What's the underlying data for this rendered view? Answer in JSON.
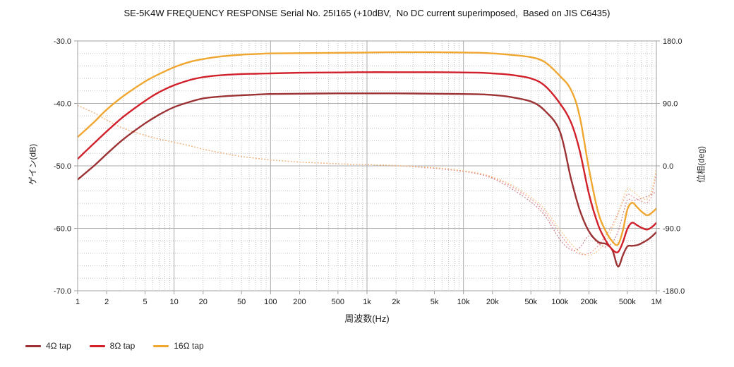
{
  "title": "SE-5K4W FREQUENCY RESPONSE Serial No. 25I165 (+10dBV,  No DC current superimposed,  Based on JIS C6435)",
  "colors": {
    "tap4": "#9c3234",
    "tap8": "#d1202a",
    "tap16": "#f0a732",
    "phase4": "#c4767c",
    "phase8": "#ef8f8f",
    "phase16": "#f5c478",
    "grid_major": "#ababab",
    "grid_minor": "#c2c2c2",
    "frame": "#a0a0a0",
    "text": "#1a1a1a"
  },
  "legend": {
    "items": [
      {
        "label": "4Ω tap",
        "color": "#9c3234"
      },
      {
        "label": "8Ω tap",
        "color": "#d1202a"
      },
      {
        "label": "16Ω tap",
        "color": "#f0a732"
      }
    ]
  },
  "chart_data": {
    "type": "line",
    "title": "SE-5K4W FREQUENCY RESPONSE Serial No. 25I165 (+10dBV,  No DC current superimposed,  Based on JIS C6435)",
    "xlabel": "周波数(Hz)",
    "ylabel_left": "ゲイン(dB)",
    "ylabel_right": "位相(deg)",
    "xscale": "log",
    "xlim": [
      1,
      1000000
    ],
    "ylim_left": [
      -70.0,
      -30.0
    ],
    "ylim_right": [
      -180.0,
      180.0
    ],
    "grid": {
      "major": true,
      "minor_db_step": 2,
      "minor_log_divisions": true
    },
    "legend_position": "bottom-left",
    "x_ticks": [
      {
        "f": 1,
        "label": "1"
      },
      {
        "f": 2,
        "label": "2"
      },
      {
        "f": 5,
        "label": "5"
      },
      {
        "f": 10,
        "label": "10"
      },
      {
        "f": 20,
        "label": "20"
      },
      {
        "f": 50,
        "label": "50"
      },
      {
        "f": 100,
        "label": "100"
      },
      {
        "f": 200,
        "label": "200"
      },
      {
        "f": 500,
        "label": "500"
      },
      {
        "f": 1000,
        "label": "1k"
      },
      {
        "f": 2000,
        "label": "2k"
      },
      {
        "f": 5000,
        "label": "5k"
      },
      {
        "f": 10000,
        "label": "10k"
      },
      {
        "f": 20000,
        "label": "20k"
      },
      {
        "f": 50000,
        "label": "50k"
      },
      {
        "f": 100000,
        "label": "100k"
      },
      {
        "f": 200000,
        "label": "200k"
      },
      {
        "f": 500000,
        "label": "500k"
      },
      {
        "f": 1000000,
        "label": "1M"
      }
    ],
    "y_ticks_left": [
      {
        "v": -30,
        "label": "-30.0"
      },
      {
        "v": -40,
        "label": "-40.0"
      },
      {
        "v": -50,
        "label": "-50.0"
      },
      {
        "v": -60,
        "label": "-60.0"
      },
      {
        "v": -70,
        "label": "-70.0"
      }
    ],
    "y_ticks_right": [
      {
        "v": 180,
        "label": "180.0"
      },
      {
        "v": 90,
        "label": "90.0"
      },
      {
        "v": 0,
        "label": "0.0"
      },
      {
        "v": -90,
        "label": "-90.0"
      },
      {
        "v": -180,
        "label": "-180.0"
      }
    ],
    "x": [
      1,
      1.5,
      2,
      3,
      5,
      7,
      10,
      15,
      20,
      30,
      50,
      70,
      100,
      200,
      500,
      1000,
      2000,
      5000,
      10000,
      15000,
      20000,
      30000,
      50000,
      70000,
      100000,
      130000,
      160000,
      200000,
      250000,
      300000,
      350000,
      400000,
      450000,
      500000,
      560000,
      630000,
      700000,
      800000,
      900000,
      1000000
    ],
    "series": [
      {
        "name": "4Ω tap gain (dB)",
        "tap": "4ohm",
        "kind": "gain",
        "axis": "left",
        "style": "solid",
        "color": "#9c3234",
        "values": [
          -52.2,
          -49.9,
          -48.1,
          -45.7,
          -43.2,
          -41.8,
          -40.6,
          -39.7,
          -39.2,
          -38.9,
          -38.7,
          -38.6,
          -38.5,
          -38.45,
          -38.4,
          -38.4,
          -38.4,
          -38.45,
          -38.5,
          -38.55,
          -38.65,
          -38.95,
          -39.7,
          -41.2,
          -44.5,
          -52.0,
          -57.0,
          -60.5,
          -62.2,
          -62.5,
          -63.5,
          -66.1,
          -64.3,
          -62.9,
          -62.8,
          -62.7,
          -62.4,
          -61.9,
          -61.3,
          -60.6
        ]
      },
      {
        "name": "8Ω tap gain (dB)",
        "tap": "8ohm",
        "kind": "gain",
        "axis": "left",
        "style": "solid",
        "color": "#d1202a",
        "values": [
          -48.9,
          -46.3,
          -44.5,
          -42.1,
          -39.6,
          -38.2,
          -37.1,
          -36.2,
          -35.8,
          -35.5,
          -35.3,
          -35.25,
          -35.2,
          -35.1,
          -35.05,
          -35.0,
          -35.0,
          -35.0,
          -35.05,
          -35.1,
          -35.2,
          -35.4,
          -36.0,
          -37.2,
          -40.0,
          -43.0,
          -47.5,
          -54.5,
          -59.5,
          -62.0,
          -63.4,
          -63.8,
          -62.2,
          -60.1,
          -59.1,
          -59.5,
          -59.9,
          -60.2,
          -59.8,
          -59.1
        ]
      },
      {
        "name": "16Ω tap gain (dB)",
        "tap": "16ohm",
        "kind": "gain",
        "axis": "left",
        "style": "solid",
        "color": "#f0a732",
        "values": [
          -45.4,
          -42.9,
          -41.0,
          -38.8,
          -36.5,
          -35.3,
          -34.2,
          -33.3,
          -32.9,
          -32.5,
          -32.2,
          -32.1,
          -32.0,
          -31.95,
          -31.9,
          -31.85,
          -31.8,
          -31.8,
          -31.85,
          -31.9,
          -32.0,
          -32.2,
          -32.6,
          -33.4,
          -35.6,
          -37.8,
          -42.0,
          -50.5,
          -57.5,
          -60.5,
          -62.1,
          -62.6,
          -60.3,
          -57.0,
          -55.9,
          -56.6,
          -57.3,
          -57.9,
          -57.5,
          -56.8
        ]
      },
      {
        "name": "4Ω tap phase (deg)",
        "tap": "4ohm",
        "kind": "phase",
        "axis": "right",
        "style": "dotted",
        "color": "#c4767c",
        "values": [
          87,
          76,
          66,
          54,
          44,
          38.5,
          34,
          28.5,
          24,
          19,
          13.5,
          11,
          8.5,
          5.5,
          3,
          1.8,
          0.3,
          -3.5,
          -8,
          -12.5,
          -18,
          -31,
          -52,
          -72,
          -106,
          -121,
          -118,
          -101,
          -112,
          -117,
          -110,
          -95,
          -70,
          -49,
          -50,
          -49,
          -47,
          -44,
          -41,
          -37
        ]
      },
      {
        "name": "8Ω tap phase (deg)",
        "tap": "8ohm",
        "kind": "phase",
        "axis": "right",
        "style": "dotted",
        "color": "#ef8f8f",
        "values": [
          87,
          76,
          66,
          54,
          44,
          38.5,
          34,
          28.5,
          24,
          19,
          13.5,
          11,
          8.5,
          5.5,
          3,
          1.8,
          0.4,
          -3,
          -7.5,
          -12,
          -17,
          -28,
          -48,
          -67,
          -98,
          -118,
          -127,
          -126,
          -115,
          -100,
          -85,
          -68,
          -52,
          -41,
          -44,
          -48,
          -51,
          -53,
          -42,
          -9
        ]
      },
      {
        "name": "16Ω tap phase (deg)",
        "tap": "16ohm",
        "kind": "phase",
        "axis": "right",
        "style": "dotted",
        "color": "#f5c478",
        "values": [
          87,
          76,
          66,
          54,
          44,
          38.5,
          34,
          28.5,
          24,
          19,
          13.5,
          11,
          8.5,
          5.5,
          3,
          1.8,
          0.5,
          -2.5,
          -7,
          -11,
          -16,
          -26,
          -45,
          -63,
          -92,
          -112,
          -124,
          -129,
          -122,
          -108,
          -90,
          -70,
          -48,
          -33,
          -36,
          -42,
          -46,
          -48,
          -35,
          -2
        ]
      }
    ]
  }
}
